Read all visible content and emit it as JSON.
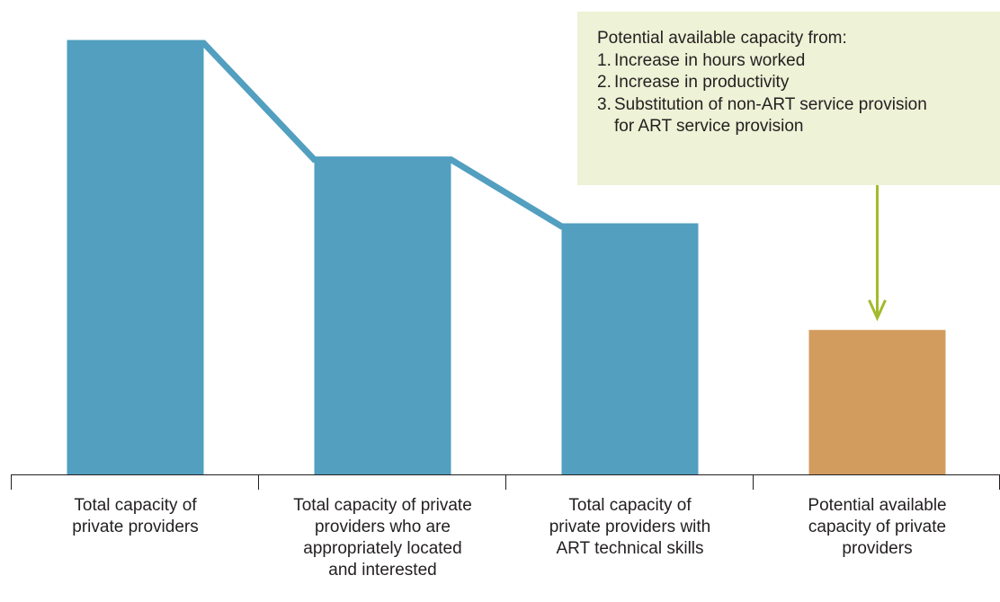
{
  "chart_data": {
    "type": "bar",
    "categories": [
      "Total capacity of\nprivate providers",
      "Total capacity of private\nproviders who are\nappropriately located\nand interested",
      "Total capacity of\nprivate providers with\nART technical skills",
      "Potential available\ncapacity of private\nproviders"
    ],
    "values": [
      100,
      73,
      57.5,
      33.5
    ],
    "ylim": [
      0,
      100
    ],
    "colors": [
      "#529fc0",
      "#529fc0",
      "#529fc0",
      "#d39c5f"
    ],
    "connector_color": "#529fc0",
    "arrow_color": "#a2bb2c",
    "axis_color": "#231f20",
    "grid": false,
    "title": "",
    "xlabel": "",
    "ylabel": ""
  },
  "callout": {
    "title": "Potential available capacity from:",
    "items": [
      {
        "num": "1.",
        "text": "Increase in hours worked"
      },
      {
        "num": "2.",
        "text": "Increase in productivity"
      },
      {
        "num": "3.",
        "text": "Substitution of non-ART service provision\nfor ART service provision"
      }
    ],
    "background": "#eef2d6"
  }
}
